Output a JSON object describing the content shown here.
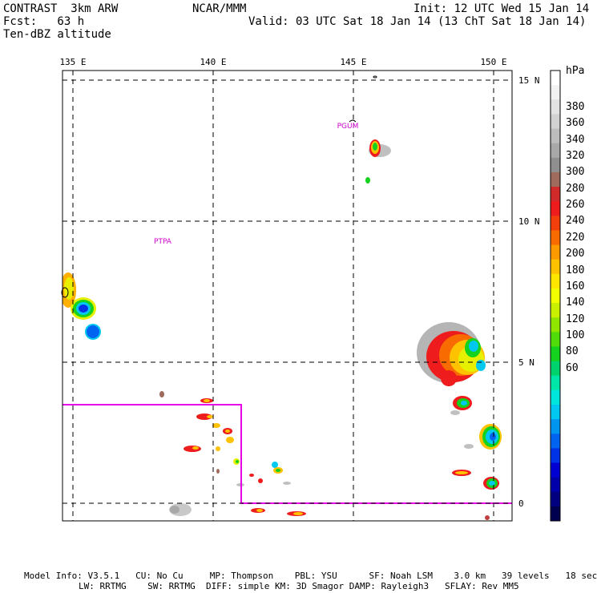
{
  "header": {
    "model": "CONTRAST  3km ARW",
    "center": "NCAR/MMM",
    "init": "Init: 12 UTC Wed 15 Jan 14",
    "fcst": "Fcst:   63 h",
    "valid": "Valid: 03 UTC Sat 18 Jan 14 (13 ChT Sat 18 Jan 14)",
    "field": "Ten-dBZ altitude"
  },
  "map": {
    "lon_labels": [
      "135 E",
      "140 E",
      "145 E",
      "150 E"
    ],
    "lat_labels": [
      "15 N",
      "10 N",
      "5 N",
      "0"
    ],
    "lon_values": [
      135,
      140,
      145,
      150
    ],
    "lat_values": [
      15,
      10,
      5,
      0
    ],
    "place_labels": [
      {
        "name": "PTPA",
        "lon": 138.2,
        "lat": 9.2
      },
      {
        "name": "PGUM",
        "lon": 144.8,
        "lat": 13.3
      }
    ],
    "colors": {
      "box": "#e600e6",
      "place": "#cc00cc"
    }
  },
  "colorbar": {
    "unit": "hPa",
    "labels": [
      "380",
      "360",
      "340",
      "320",
      "300",
      "280",
      "260",
      "240",
      "220",
      "200",
      "180",
      "160",
      "140",
      "120",
      "100",
      "80",
      "60"
    ],
    "colors": [
      "#ffffff",
      "#f2f2f2",
      "#e3e3e3",
      "#d2d2d2",
      "#bdbdbd",
      "#a8a8a8",
      "#8f8f8f",
      "#9e6b5d",
      "#d12a2a",
      "#ee1c1c",
      "#f23f0b",
      "#f86b00",
      "#fc9a00",
      "#ffc200",
      "#ffe600",
      "#f2ff00",
      "#c8f000",
      "#91e600",
      "#4fdc0a",
      "#14d21e",
      "#00d26e",
      "#00e6a8",
      "#00e6dc",
      "#00c8f0",
      "#0096f0",
      "#0064f0",
      "#0032e6",
      "#0000d2",
      "#0000aa",
      "#000080",
      "#000050"
    ]
  },
  "footer": {
    "line1": "Model Info: V3.5.1   CU: No Cu     MP: Thompson    PBL: YSU      SF: Noah LSM    3.0 km   39 levels   18 sec",
    "line2": "LW: RRTMG    SW: RRTMG  DIFF: simple KM: 3D Smagor DAMP: Rayleigh3   SFLAY: Rev MM5"
  }
}
